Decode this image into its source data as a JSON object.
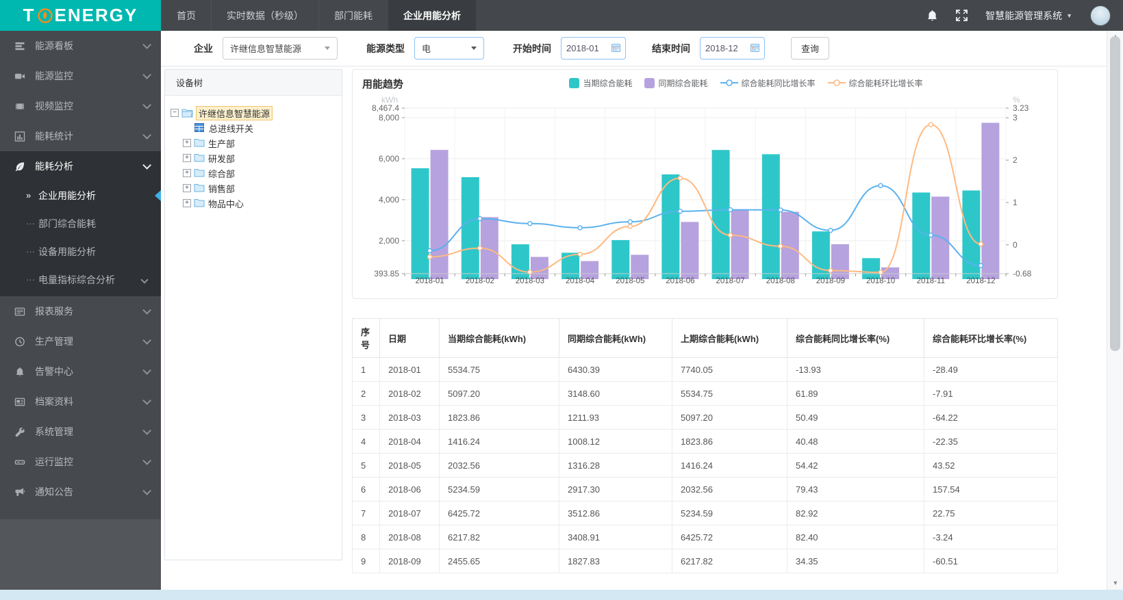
{
  "logo": {
    "part1": "T",
    "part2": "ENERGY"
  },
  "topnav": {
    "items": [
      {
        "label": "首页",
        "active": false
      },
      {
        "label": "实时数据（秒级）",
        "active": false
      },
      {
        "label": "部门能耗",
        "active": false
      },
      {
        "label": "企业用能分析",
        "active": true
      }
    ],
    "system_title": "智慧能源管理系统"
  },
  "sidebar": {
    "items": [
      {
        "icon": "dashboard",
        "label": "能源看板"
      },
      {
        "icon": "camera",
        "label": "能源监控"
      },
      {
        "icon": "film",
        "label": "视频监控"
      },
      {
        "icon": "bar-chart",
        "label": "能耗统计"
      },
      {
        "icon": "leaf",
        "label": "能耗分析",
        "expanded": true,
        "children": [
          {
            "label": "企业用能分析",
            "active": true
          },
          {
            "label": "部门综合能耗"
          },
          {
            "label": "设备用能分析"
          },
          {
            "label": "电量指标综合分析",
            "has_children": true
          }
        ]
      },
      {
        "icon": "report",
        "label": "报表服务"
      },
      {
        "icon": "clock",
        "label": "生产管理"
      },
      {
        "icon": "bell",
        "label": "告警中心"
      },
      {
        "icon": "archive",
        "label": "档案资料"
      },
      {
        "icon": "wrench",
        "label": "系统管理"
      },
      {
        "icon": "server",
        "label": "运行监控"
      },
      {
        "icon": "megaphone",
        "label": "通知公告"
      }
    ]
  },
  "filters": {
    "company_label": "企业",
    "company_value": "许继信息智慧能源",
    "energy_label": "能源类型",
    "energy_value": "电",
    "start_label": "开始时间",
    "start_value": "2018-01",
    "end_label": "结束时间",
    "end_value": "2018-12",
    "query_label": "查询"
  },
  "tree": {
    "header": "设备树",
    "root": "许继信息智慧能源",
    "meter": "总进线开关",
    "folders": [
      "生产部",
      "研发部",
      "综合部",
      "销售部",
      "物品中心"
    ]
  },
  "chart_data": {
    "type": "bar",
    "title": "用能趋势",
    "unit_left": "kWh",
    "unit_right": "%",
    "categories": [
      "2018-01",
      "2018-02",
      "2018-03",
      "2018-04",
      "2018-05",
      "2018-06",
      "2018-07",
      "2018-08",
      "2018-09",
      "2018-10",
      "2018-11",
      "2018-12"
    ],
    "series": [
      {
        "name": "当期综合能耗",
        "type": "bar",
        "axis": "left",
        "color": "#2ec7c9",
        "values": [
          5534.75,
          5097.2,
          1823.86,
          1416.24,
          2032.56,
          5234.59,
          6425.72,
          6217.82,
          2455.65,
          1150,
          4350,
          4450
        ]
      },
      {
        "name": "同期综合能耗",
        "type": "bar",
        "axis": "left",
        "color": "#b6a2de",
        "values": [
          6430.39,
          3148.6,
          1211.93,
          1008.12,
          1316.28,
          2917.3,
          3512.86,
          3408.91,
          1827.83,
          700,
          4150,
          7750
        ]
      },
      {
        "name": "综合能耗同比增长率",
        "type": "line",
        "axis": "right",
        "color": "#5ab1ef",
        "values_pct": [
          -13.93,
          61.89,
          50.49,
          40.48,
          54.42,
          79.43,
          82.92,
          82.4,
          34.35,
          140,
          23,
          -49
        ]
      },
      {
        "name": "综合能耗环比增长率",
        "type": "line",
        "axis": "right",
        "color": "#ffb980",
        "values_pct": [
          -28.49,
          -7.91,
          -64.22,
          -22.35,
          43.52,
          157.54,
          22.75,
          -3.24,
          -60.51,
          -65,
          284,
          2
        ]
      }
    ],
    "left_axis": {
      "min": 393.85,
      "max": 8467.4,
      "tick_values": [
        393.85,
        2000,
        4000,
        6000,
        8000,
        8467.4
      ],
      "tick_labels": [
        "393.85",
        "2,000",
        "4,000",
        "6,000",
        "8,000",
        "8,467.4"
      ]
    },
    "right_axis": {
      "min": -0.68,
      "max": 3.23,
      "tick_values": [
        -0.68,
        0,
        1,
        2,
        3,
        3.23
      ],
      "tick_labels": [
        "-0.68",
        "0",
        "1",
        "2",
        "3",
        "3.23"
      ]
    },
    "legend_position": "top"
  },
  "table": {
    "columns": [
      "序号",
      "日期",
      "当期综合能耗(kWh)",
      "同期综合能耗(kWh)",
      "上期综合能耗(kWh)",
      "综合能耗同比增长率(%)",
      "综合能耗环比增长率(%)"
    ],
    "rows": [
      [
        "1",
        "2018-01",
        "5534.75",
        "6430.39",
        "7740.05",
        "-13.93",
        "-28.49"
      ],
      [
        "2",
        "2018-02",
        "5097.20",
        "3148.60",
        "5534.75",
        "61.89",
        "-7.91"
      ],
      [
        "3",
        "2018-03",
        "1823.86",
        "1211.93",
        "5097.20",
        "50.49",
        "-64.22"
      ],
      [
        "4",
        "2018-04",
        "1416.24",
        "1008.12",
        "1823.86",
        "40.48",
        "-22.35"
      ],
      [
        "5",
        "2018-05",
        "2032.56",
        "1316.28",
        "1416.24",
        "54.42",
        "43.52"
      ],
      [
        "6",
        "2018-06",
        "5234.59",
        "2917.30",
        "2032.56",
        "79.43",
        "157.54"
      ],
      [
        "7",
        "2018-07",
        "6425.72",
        "3512.86",
        "5234.59",
        "82.92",
        "22.75"
      ],
      [
        "8",
        "2018-08",
        "6217.82",
        "3408.91",
        "6425.72",
        "82.40",
        "-3.24"
      ],
      [
        "9",
        "2018-09",
        "2455.65",
        "1827.83",
        "6217.82",
        "34.35",
        "-60.51"
      ]
    ]
  },
  "colors": {
    "brand_teal": "#00b8b0",
    "logo_accent": "#f28c1e",
    "selected_marker": "#3fb0e8"
  }
}
